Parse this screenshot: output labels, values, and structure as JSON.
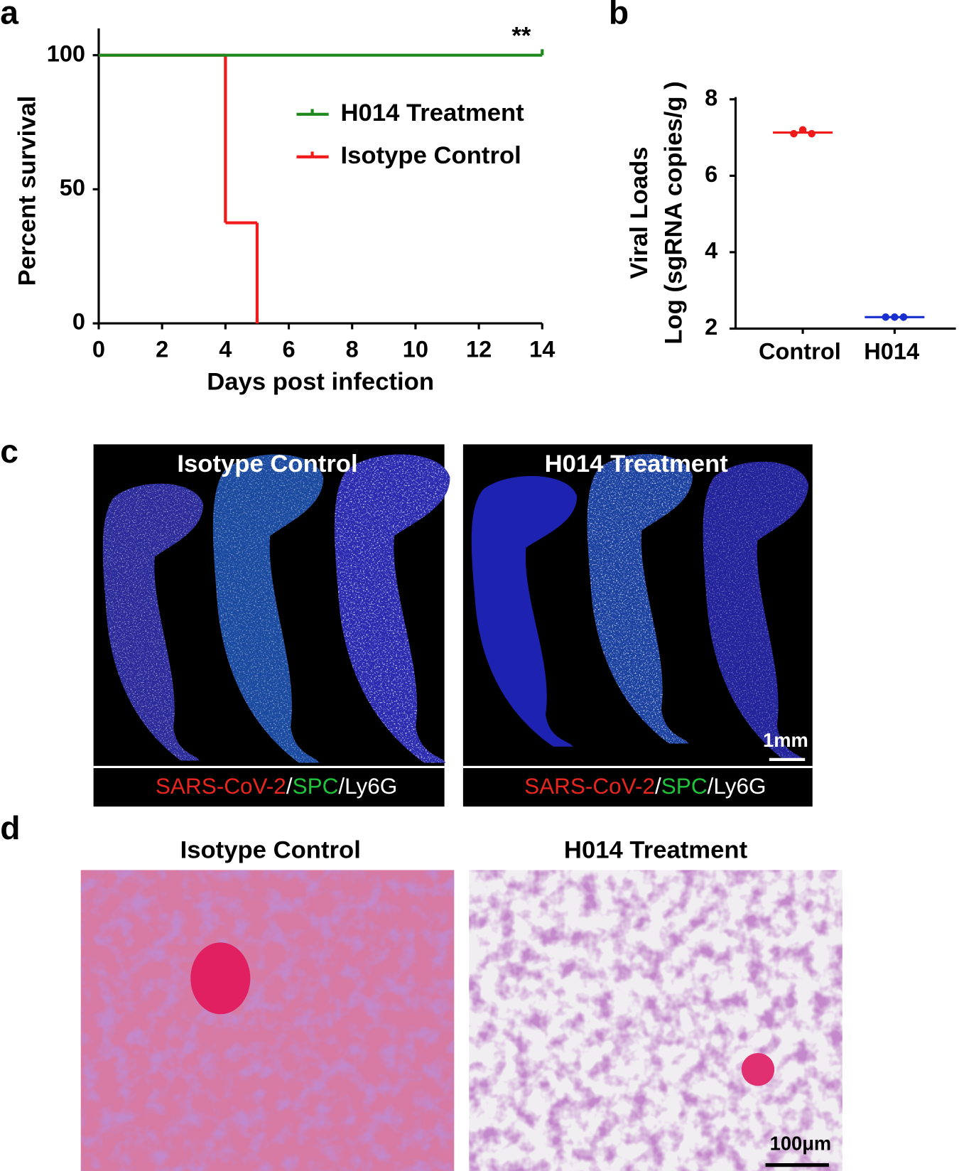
{
  "panel_labels": [
    "a",
    "b",
    "c",
    "d"
  ],
  "chart_data": [
    {
      "type": "step",
      "ylabel": "Percent  survival",
      "xlabel": "Days post infection",
      "xlim": [
        0,
        14
      ],
      "xticks": [
        0,
        2,
        4,
        6,
        8,
        10,
        12,
        14
      ],
      "ylim": [
        0,
        110
      ],
      "yticks": [
        0,
        50,
        100
      ],
      "annotation": "**",
      "series": [
        {
          "name": "H014 Treatment",
          "color": "#1e8a1e",
          "x": [
            0,
            14
          ],
          "values": [
            100,
            100
          ]
        },
        {
          "name": "Isotype Control",
          "color": "#f01a1a",
          "x": [
            0,
            4,
            5
          ],
          "values": [
            100,
            37.5,
            0
          ]
        }
      ]
    },
    {
      "type": "dot",
      "ylabel": [
        "Viral Loads",
        "Log (sgRNA copies/g )"
      ],
      "categories": [
        "Control",
        "H014"
      ],
      "colors": [
        "#f01a1a",
        "#1a2fd0"
      ],
      "points": [
        [
          7.1,
          7.2,
          7.1
        ],
        [
          2.3,
          2.3,
          2.3
        ]
      ],
      "means": [
        7.13,
        2.3
      ],
      "ylim": [
        2,
        8
      ],
      "yticks": [
        2,
        4,
        6,
        8
      ]
    }
  ],
  "panel_c": {
    "panels": [
      {
        "title": "Isotype Control",
        "caption": [
          {
            "text": "SARS-CoV-2",
            "color": "#e8261f"
          },
          {
            "text": "/",
            "color": "#ffffff"
          },
          {
            "text": "SPC",
            "color": "#1fc43a"
          },
          {
            "text": "/",
            "color": "#ffffff"
          },
          {
            "text": "Ly6G",
            "color": "#ffffff"
          }
        ]
      },
      {
        "title": "H014 Treatment",
        "caption": [
          {
            "text": "SARS-CoV-2",
            "color": "#e8261f"
          },
          {
            "text": "/",
            "color": "#ffffff"
          },
          {
            "text": "SPC",
            "color": "#1fc43a"
          },
          {
            "text": "/",
            "color": "#ffffff"
          },
          {
            "text": "Ly6G",
            "color": "#ffffff"
          }
        ]
      }
    ],
    "scale_bar": "1mm"
  },
  "panel_d": {
    "titles": [
      "Isotype Control",
      "H014 Treatment"
    ],
    "scale_bar": "100μm"
  }
}
